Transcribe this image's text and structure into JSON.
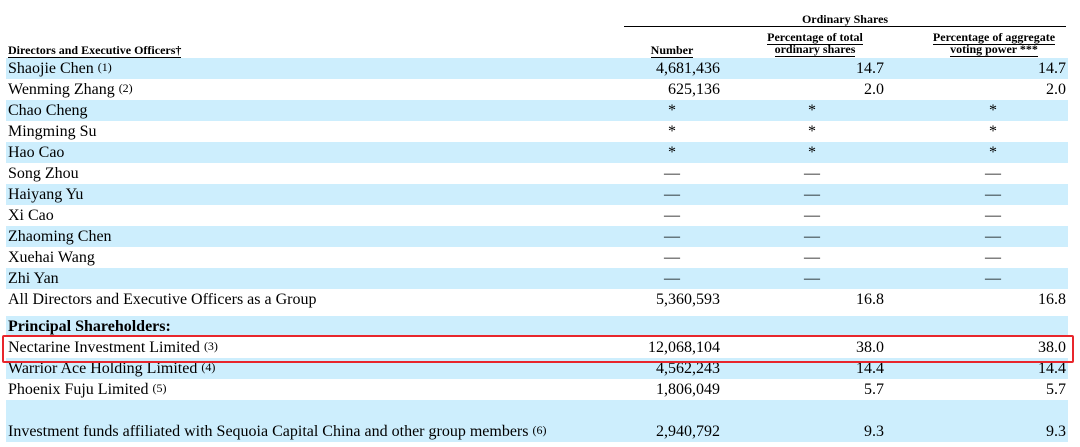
{
  "header": {
    "group": "Ordinary Shares",
    "label": "Directors and Executive Officers†",
    "columns": [
      "Number",
      "Percentage of total ordinary shares",
      "Percentage of aggregate voting power ***"
    ]
  },
  "directors": [
    {
      "name": "Shaojie Chen",
      "note": "(1)",
      "cells": [
        "4,681,436",
        "14.7",
        "14.7"
      ]
    },
    {
      "name": "Wenming Zhang",
      "note": "(2)",
      "cells": [
        "625,136",
        "2.0",
        "2.0"
      ]
    },
    {
      "name": "Chao Cheng",
      "cells": [
        "*",
        "*",
        "*"
      ]
    },
    {
      "name": "Mingming Su",
      "cells": [
        "*",
        "*",
        "*"
      ]
    },
    {
      "name": "Hao Cao",
      "cells": [
        "*",
        "*",
        "*"
      ]
    },
    {
      "name": "Song Zhou",
      "cells": [
        "—",
        "—",
        "—"
      ]
    },
    {
      "name": "Haiyang Yu",
      "cells": [
        "—",
        "—",
        "—"
      ]
    },
    {
      "name": "Xi Cao",
      "cells": [
        "—",
        "—",
        "—"
      ]
    },
    {
      "name": "Zhaoming Chen",
      "cells": [
        "—",
        "—",
        "—"
      ]
    },
    {
      "name": "Xuehai Wang",
      "cells": [
        "—",
        "—",
        "—"
      ]
    },
    {
      "name": "Zhi Yan",
      "cells": [
        "—",
        "—",
        "—"
      ]
    },
    {
      "name": "All Directors and Executive Officers as a Group",
      "cells": [
        "5,360,593",
        "16.8",
        "16.8"
      ]
    }
  ],
  "principal": {
    "title": "Principal Shareholders:",
    "rows": [
      {
        "name": "Nectarine Investment Limited",
        "note": "(3)",
        "cells": [
          "12,068,104",
          "38.0",
          "38.0"
        ]
      },
      {
        "name": "Warrior Ace Holding Limited",
        "note": "(4)",
        "cells": [
          "4,562,243",
          "14.4",
          "14.4"
        ]
      },
      {
        "name": "Phoenix Fuju Limited",
        "note": "(5)",
        "cells": [
          "1,806,049",
          "5.7",
          "5.7"
        ]
      },
      {
        "name": "Investment funds affiliated with Sequoia Capital China and other group members",
        "note": "(6)",
        "cells": [
          "2,940,792",
          "9.3",
          "9.3"
        ]
      }
    ]
  }
}
